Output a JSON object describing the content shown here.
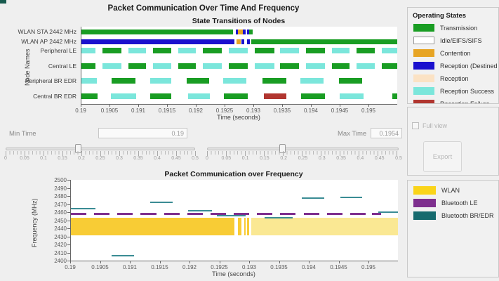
{
  "main_title": "Packet Communication Over Time And Frequency",
  "colors": {
    "states": {
      "transmission": "#199d23",
      "idle": "#ffffff",
      "contention": "#e7a525",
      "reception_dest": "#1a10ce",
      "reception": "#fbe2c4",
      "reception_success": "#7be6db",
      "reception_failure": "#b13630"
    },
    "wlan_bright": "#f8cc35",
    "wlan_pale": "#fae893",
    "wlan_legend": "#fad41a",
    "ble_purple": "#7e2f8e",
    "bredr_teal_segment": "#3a8c94",
    "bredr_teal_legend": "#166a6e",
    "corner_artifact": "#175a4e"
  },
  "state_chart": {
    "title": "State Transitions of Nodes",
    "xlabel": "Time (seconds)",
    "ylabel": "Node Names",
    "xmin": 0.19,
    "xmax": 0.19549,
    "x_ticks": [
      "0.19",
      "0.1905",
      "0.191",
      "0.1915",
      "0.192",
      "0.1925",
      "0.193",
      "0.1935",
      "0.194",
      "0.1945",
      "0.195"
    ],
    "rows": [
      {
        "label": "WLAN STA 2442 MHz",
        "segments": [
          [
            0.19,
            0.19263,
            "transmission"
          ],
          [
            0.19268,
            0.19272,
            "reception_dest"
          ],
          [
            0.19272,
            0.1928,
            "contention"
          ],
          [
            0.1928,
            0.19285,
            "reception_dest"
          ],
          [
            0.19288,
            0.19291,
            "reception_dest"
          ],
          [
            0.19292,
            0.19297,
            "transmission"
          ]
        ]
      },
      {
        "label": "WLAN AP 2442 MHz",
        "segments": [
          [
            0.19,
            0.19266,
            "reception_dest"
          ],
          [
            0.1927,
            0.19277,
            "contention"
          ],
          [
            0.19278,
            0.19283,
            "reception_dest"
          ],
          [
            0.19288,
            0.19293,
            "reception_dest"
          ],
          [
            0.19295,
            0.19549,
            "transmission"
          ]
        ]
      },
      {
        "label": "Peripheral LE",
        "segments": [
          [
            0.19,
            0.19024,
            "reception_success"
          ],
          [
            0.19037,
            0.1907,
            "transmission"
          ],
          [
            0.19082,
            0.19112,
            "reception_success"
          ],
          [
            0.19124,
            0.19156,
            "transmission"
          ],
          [
            0.19168,
            0.19199,
            "reception_success"
          ],
          [
            0.19211,
            0.19244,
            "transmission"
          ],
          [
            0.19256,
            0.19289,
            "reception_success"
          ],
          [
            0.19301,
            0.19335,
            "transmission"
          ],
          [
            0.19345,
            0.19378,
            "reception_success"
          ],
          [
            0.1939,
            0.19423,
            "transmission"
          ],
          [
            0.19435,
            0.19466,
            "reception_success"
          ],
          [
            0.19478,
            0.1951,
            "transmission"
          ],
          [
            0.19522,
            0.19549,
            "reception_success"
          ]
        ]
      },
      {
        "label": "Central LE",
        "segments": [
          [
            0.19,
            0.19024,
            "transmission"
          ],
          [
            0.19037,
            0.1907,
            "reception_success"
          ],
          [
            0.19082,
            0.19112,
            "transmission"
          ],
          [
            0.19124,
            0.19156,
            "reception_success"
          ],
          [
            0.19168,
            0.19199,
            "transmission"
          ],
          [
            0.19211,
            0.19244,
            "reception_success"
          ],
          [
            0.19256,
            0.19289,
            "transmission"
          ],
          [
            0.19301,
            0.19335,
            "reception_success"
          ],
          [
            0.19345,
            0.19378,
            "transmission"
          ],
          [
            0.1939,
            0.19423,
            "reception_success"
          ],
          [
            0.19435,
            0.19466,
            "transmission"
          ],
          [
            0.19478,
            0.1951,
            "reception_success"
          ],
          [
            0.19522,
            0.19549,
            "transmission"
          ]
        ]
      },
      {
        "label": "Peripheral BR EDR",
        "segments": [
          [
            0.19,
            0.19027,
            "reception_success"
          ],
          [
            0.19052,
            0.19094,
            "transmission"
          ],
          [
            0.1912,
            0.19156,
            "reception_success"
          ],
          [
            0.19183,
            0.19222,
            "transmission"
          ],
          [
            0.19246,
            0.19287,
            "reception_success"
          ],
          [
            0.19315,
            0.19356,
            "transmission"
          ],
          [
            0.1938,
            0.19421,
            "reception_success"
          ],
          [
            0.19448,
            0.19488,
            "transmission"
          ]
        ]
      },
      {
        "label": "Central BR EDR",
        "segments": [
          [
            0.19,
            0.19028,
            "transmission"
          ],
          [
            0.19051,
            0.19095,
            "reception_success"
          ],
          [
            0.1912,
            0.19156,
            "transmission"
          ],
          [
            0.19185,
            0.19223,
            "reception_success"
          ],
          [
            0.19248,
            0.19289,
            "transmission"
          ],
          [
            0.19317,
            0.19356,
            "reception_failure"
          ],
          [
            0.19382,
            0.19423,
            "transmission"
          ],
          [
            0.19449,
            0.1949,
            "reception_success"
          ],
          [
            0.1954,
            0.19549,
            "transmission"
          ]
        ]
      }
    ]
  },
  "legend_states": {
    "title": "Operating States",
    "items": [
      {
        "label": "Transmission",
        "state": "transmission"
      },
      {
        "label": "Idle/EIFS/SIFS",
        "state": "idle"
      },
      {
        "label": "Contention",
        "state": "contention"
      },
      {
        "label": "Reception (Destined to node)",
        "state": "reception_dest"
      },
      {
        "label": "Reception",
        "state": "reception"
      },
      {
        "label": "Reception Success",
        "state": "reception_success"
      },
      {
        "label": "Reception Failure",
        "state": "reception_failure"
      }
    ]
  },
  "controls": {
    "min_time_label": "Min Time",
    "min_time_value": "0.19",
    "max_time_label": "Max Time",
    "max_time_value": "0.1954",
    "slider_min": 0,
    "slider_max": 0.5,
    "min_slider_value": 0.19,
    "max_slider_value": 0.1954,
    "slider_ticks": [
      "0",
      "0.05",
      "0.1",
      "0.15",
      "0.2",
      "0.25",
      "0.3",
      "0.35",
      "0.4",
      "0.45",
      "0.5"
    ],
    "full_view_label": "Full view",
    "export_label": "Export"
  },
  "freq_chart": {
    "title": "Packet Communication over Frequency",
    "xlabel": "Time (seconds)",
    "ylabel": "Frequency (MHz)",
    "xmin": 0.19,
    "xmax": 0.19548,
    "ymin": 2400,
    "ymax": 2500,
    "x_ticks": [
      "0.19",
      "0.1905",
      "0.191",
      "0.1915",
      "0.192",
      "0.1925",
      "0.193",
      "0.1935",
      "0.194",
      "0.1945",
      "0.195"
    ],
    "y_ticks": [
      "2400",
      "2410",
      "2420",
      "2430",
      "2440",
      "2450",
      "2460",
      "2470",
      "2480",
      "2490",
      "2500"
    ],
    "wlan_band": {
      "f_low": 2431,
      "f_high": 2453,
      "segments": [
        [
          0.19,
          0.19274,
          "bright"
        ],
        [
          0.1928,
          0.19286,
          "bright"
        ],
        [
          0.19291,
          0.19293,
          "bright"
        ],
        [
          0.19295,
          0.19299,
          "bright"
        ],
        [
          0.19302,
          0.19548,
          "pale"
        ]
      ]
    },
    "ble_freq": 2458,
    "ble_dashes": [
      [
        0.19,
        0.19026
      ],
      [
        0.19039,
        0.19065
      ],
      [
        0.19078,
        0.19104
      ],
      [
        0.19117,
        0.19143
      ],
      [
        0.19156,
        0.19182
      ],
      [
        0.19195,
        0.19221
      ],
      [
        0.19234,
        0.1926
      ],
      [
        0.19273,
        0.19299
      ],
      [
        0.19312,
        0.19338
      ],
      [
        0.19351,
        0.19377
      ],
      [
        0.1939,
        0.19416
      ],
      [
        0.19429,
        0.19455
      ],
      [
        0.19468,
        0.19494
      ],
      [
        0.19505,
        0.1952
      ]
    ],
    "bredr_segments": [
      [
        0.19,
        0.19041,
        2464
      ],
      [
        0.19068,
        0.19106,
        2406
      ],
      [
        0.19133,
        0.19171,
        2472
      ],
      [
        0.19197,
        0.19236,
        2462
      ],
      [
        0.19245,
        0.19293,
        2456
      ],
      [
        0.19325,
        0.19372,
        2453
      ],
      [
        0.19387,
        0.19425,
        2477
      ],
      [
        0.19452,
        0.19488,
        2478
      ],
      [
        0.19515,
        0.19548,
        2460
      ]
    ]
  },
  "legend_freq": {
    "items": [
      {
        "label": "WLAN",
        "color_key": "wlan_legend"
      },
      {
        "label": "Bluetooth LE",
        "color_key": "ble_purple"
      },
      {
        "label": "Bluetooth BR/EDR",
        "color_key": "bredr_teal_legend"
      }
    ]
  }
}
